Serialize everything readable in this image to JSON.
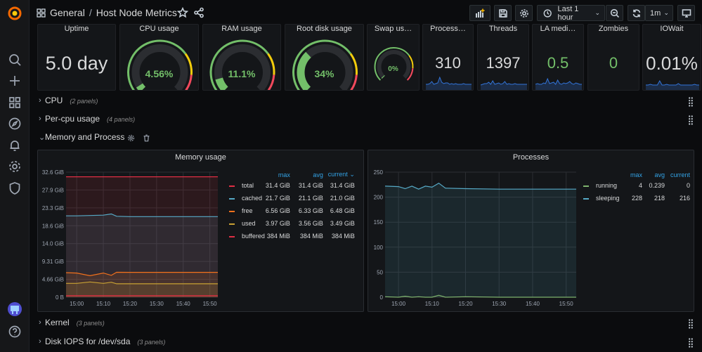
{
  "breadcrumb": {
    "folder": "General",
    "separator": "/",
    "dashboard": "Host Node Metrics"
  },
  "toolbar": {
    "time_range": "Last 1 hour",
    "refresh_interval": "1m"
  },
  "stats": [
    {
      "title": "Uptime",
      "value": "5.0 day"
    },
    {
      "title": "CPU usage",
      "value": "4.56%",
      "gauge": 0.0456
    },
    {
      "title": "RAM usage",
      "value": "11.1%",
      "gauge": 0.111
    },
    {
      "title": "Root disk usage",
      "value": "34%",
      "gauge": 0.34
    },
    {
      "title": "Swap us…",
      "value": "0%",
      "gauge": 0
    },
    {
      "title": "Process…",
      "value": "310"
    },
    {
      "title": "Threads",
      "value": "1397"
    },
    {
      "title": "LA medi…",
      "value": "0.5"
    },
    {
      "title": "Zombies",
      "value": "0"
    },
    {
      "title": "IOWait",
      "value": "0.01%"
    }
  ],
  "rows": [
    {
      "title": "CPU",
      "count": "(2 panels)"
    },
    {
      "title": "Per-cpu usage",
      "count": "(4 panels)"
    },
    {
      "title": "Memory and Process",
      "count": ""
    },
    {
      "title": "Kernel",
      "count": "(3 panels)"
    },
    {
      "title": "Disk IOPS for /dev/sda",
      "count": "(3 panels)"
    }
  ],
  "memory_panel": {
    "title": "Memory usage",
    "legend_headers": {
      "max": "max",
      "avg": "avg",
      "current": "current"
    },
    "legend": [
      {
        "name": "total",
        "max": "31.4 GiB",
        "avg": "31.4 GiB",
        "current": "31.4 GiB",
        "color": "#e02f44"
      },
      {
        "name": "cached",
        "max": "21.7 GiB",
        "avg": "21.1 GiB",
        "current": "21.0 GiB",
        "color": "#56a9c6"
      },
      {
        "name": "free",
        "max": "6.56 GiB",
        "avg": "6.33 GiB",
        "current": "6.48 GiB",
        "color": "#f2711c"
      },
      {
        "name": "used",
        "max": "3.97 GiB",
        "avg": "3.56 GiB",
        "current": "3.49 GiB",
        "color": "#c8a133"
      },
      {
        "name": "buffered",
        "max": "384 MiB",
        "avg": "384 MiB",
        "current": "384 MiB",
        "color": "#e02f44"
      }
    ],
    "y_ticks": [
      "32.6 GiB",
      "27.9 GiB",
      "23.3 GiB",
      "18.6 GiB",
      "14.0 GiB",
      "9.31 GiB",
      "4.66 GiB",
      "0 B"
    ],
    "x_ticks": [
      "15:00",
      "15:10",
      "15:20",
      "15:30",
      "15:40",
      "15:50"
    ]
  },
  "process_panel": {
    "title": "Processes",
    "legend_headers": {
      "max": "max",
      "avg": "avg",
      "current": "current"
    },
    "legend": [
      {
        "name": "running",
        "max": "4",
        "avg": "0.239",
        "current": "0",
        "color": "#7eb26d"
      },
      {
        "name": "sleeping",
        "max": "228",
        "avg": "218",
        "current": "216",
        "color": "#56a9c6"
      }
    ],
    "y_ticks": [
      "250",
      "200",
      "150",
      "100",
      "50",
      "0"
    ],
    "x_ticks": [
      "15:00",
      "15:10",
      "15:20",
      "15:30",
      "15:40",
      "15:50"
    ]
  },
  "chart_data": [
    {
      "type": "area",
      "title": "Memory usage",
      "ylim": [
        0,
        32.6
      ],
      "y_unit": "GiB",
      "x": [
        "14:56",
        "15:00",
        "15:05",
        "15:10",
        "15:13",
        "15:15",
        "15:20",
        "15:30",
        "15:40",
        "15:50",
        "15:53"
      ],
      "series": [
        {
          "name": "total",
          "values": [
            31.4,
            31.4,
            31.4,
            31.4,
            31.4,
            31.4,
            31.4,
            31.4,
            31.4,
            31.4,
            31.4
          ]
        },
        {
          "name": "cached",
          "values": [
            21.2,
            21.2,
            21.3,
            21.4,
            21.7,
            21.1,
            21.0,
            21.0,
            21.0,
            21.0,
            21.0
          ]
        },
        {
          "name": "free",
          "values": [
            6.4,
            6.3,
            5.6,
            6.3,
            5.7,
            6.5,
            6.48,
            6.48,
            6.48,
            6.48,
            6.48
          ]
        },
        {
          "name": "used",
          "values": [
            3.6,
            3.6,
            3.97,
            3.6,
            3.9,
            3.5,
            3.49,
            3.49,
            3.49,
            3.49,
            3.49
          ]
        },
        {
          "name": "buffered",
          "values": [
            0.38,
            0.38,
            0.38,
            0.38,
            0.38,
            0.38,
            0.38,
            0.38,
            0.38,
            0.38,
            0.38
          ]
        }
      ]
    },
    {
      "type": "line",
      "title": "Processes",
      "ylim": [
        0,
        250
      ],
      "x": [
        "14:56",
        "15:00",
        "15:02",
        "15:04",
        "15:06",
        "15:08",
        "15:10",
        "15:12",
        "15:14",
        "15:20",
        "15:30",
        "15:40",
        "15:50",
        "15:53"
      ],
      "series": [
        {
          "name": "running",
          "values": [
            1,
            0,
            2,
            0,
            1,
            0,
            0,
            4,
            0,
            1,
            0,
            0,
            0,
            0
          ]
        },
        {
          "name": "sleeping",
          "values": [
            222,
            221,
            217,
            222,
            216,
            222,
            220,
            228,
            218,
            217,
            216,
            216,
            216,
            216
          ]
        }
      ]
    }
  ]
}
